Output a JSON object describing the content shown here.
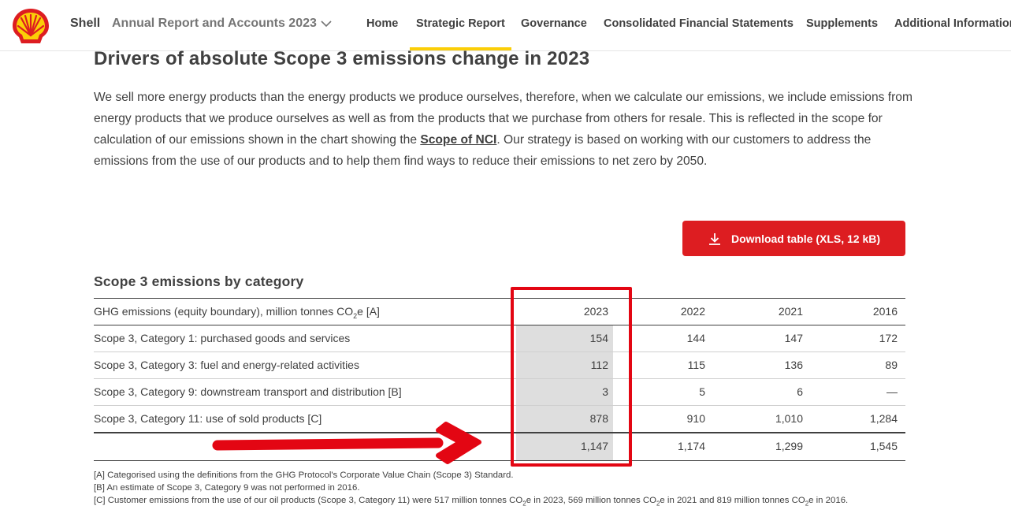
{
  "header": {
    "brand": "Shell",
    "report_title": "Annual Report and Accounts 2023",
    "nav": [
      "Home",
      "Strategic Report",
      "Governance",
      "Consolidated Financial Statements",
      "Supplements",
      "Additional Information"
    ],
    "active_nav": "Strategic Report",
    "colors": {
      "accent_yellow": "#fbce07",
      "brand_red": "#dd1d21"
    }
  },
  "section": {
    "title": "Drivers of absolute Scope 3 emissions change in 2023",
    "intro_part1": "We sell more energy products than the energy products we produce ourselves, therefore, when we calculate our emissions, we include emissions from energy products that we produce ourselves as well as from the products that we purchase from others for resale. This is reflected in the scope for calculation of our emissions shown in the chart showing the ",
    "intro_link": "Scope of NCI",
    "intro_part2": ". Our strategy is based on working with our customers to address the emissions from the use of our products and to help them find ways to reduce their emissions to net zero by 2050."
  },
  "download": {
    "label": "Download table (XLS, 12 kB)",
    "icon": "download-icon"
  },
  "table": {
    "title": "Scope 3 emissions by category",
    "header_label_pre": "GHG emissions (equity boundary), million tonnes CO",
    "header_label_sub": "2",
    "header_label_post": "e [A]",
    "years": [
      "2023",
      "2022",
      "2021",
      "2016"
    ],
    "rows": [
      {
        "label": "Scope 3, Category 1: purchased goods and services",
        "values": [
          "154",
          "144",
          "147",
          "172"
        ]
      },
      {
        "label": "Scope 3, Category 3: fuel and energy-related activities",
        "values": [
          "112",
          "115",
          "136",
          "89"
        ]
      },
      {
        "label": "Scope 3, Category 9: downstream transport and distribution [B]",
        "values": [
          "3",
          "5",
          "6",
          "—"
        ]
      },
      {
        "label": "Scope 3, Category 11: use of sold products [C]",
        "values": [
          "878",
          "910",
          "1,010",
          "1,284"
        ]
      }
    ],
    "totals": [
      "1,147",
      "1,174",
      "1,299",
      "1,545"
    ]
  },
  "footnotes": {
    "a": "[A]  Categorised using the definitions from the GHG Protocol's Corporate Value Chain (Scope 3) Standard.",
    "b": "[B]  An estimate of Scope 3, Category 9 was not performed in 2016.",
    "c1": "[C]  Customer emissions from the use of our oil products (Scope 3, Category 11) were 517 million tonnes CO",
    "c2": "e in 2023, 569 million tonnes CO",
    "c3": "e in 2021 and 819 million tonnes CO",
    "c4": "e in 2016.",
    "sub": "2"
  },
  "annotation": {
    "color": "#e30613"
  }
}
